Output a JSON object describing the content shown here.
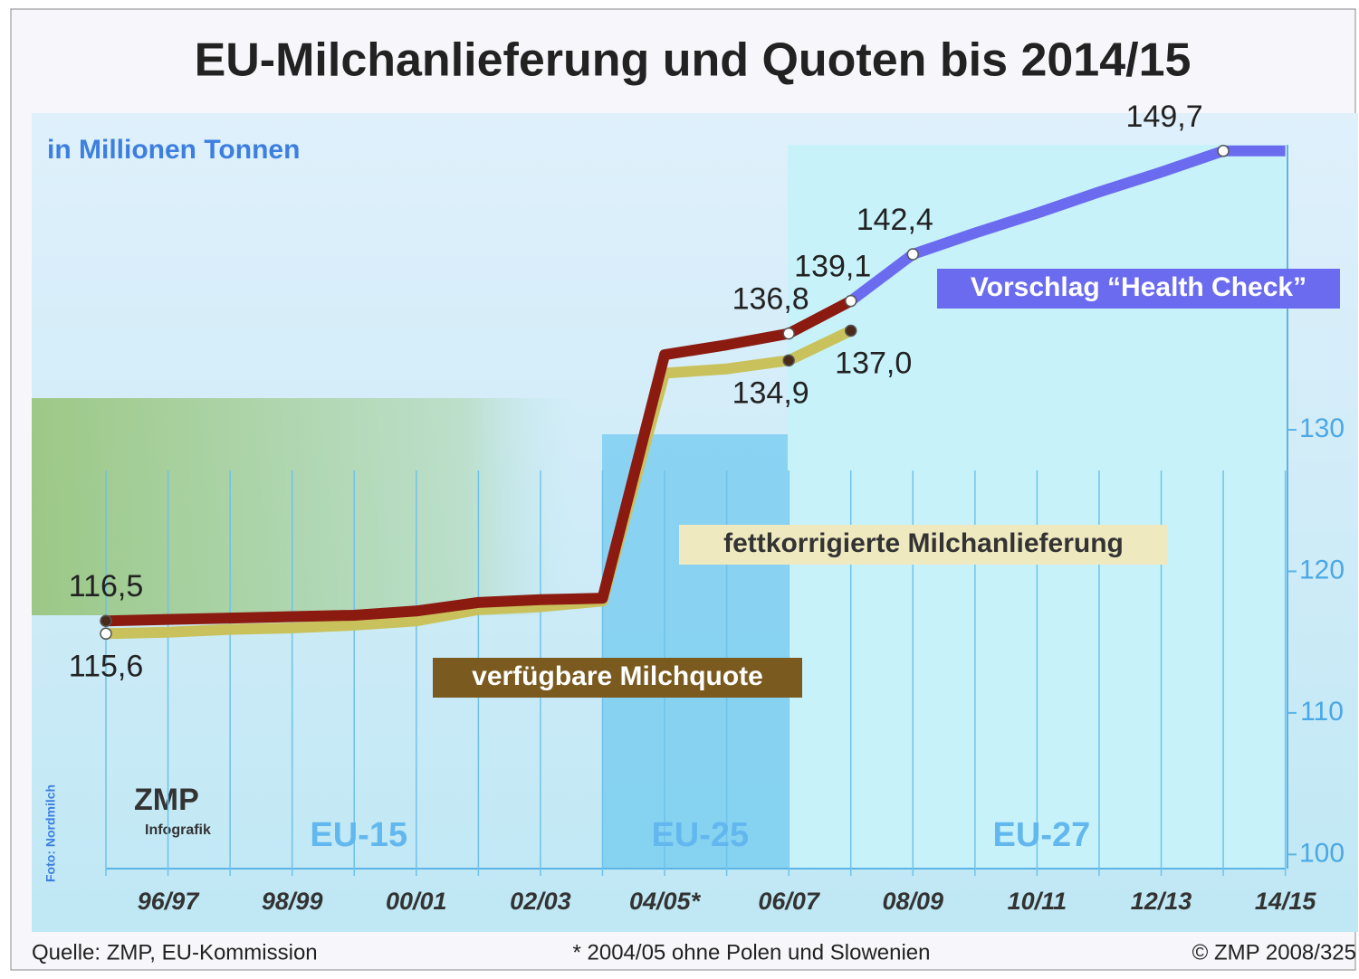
{
  "chart_data": {
    "type": "line",
    "title": "EU-Milchanlieferung und Quoten bis 2014/15",
    "subtitle": "in Millionen Tonnen",
    "categories": [
      null,
      "96/97",
      null,
      "98/99",
      null,
      "00/01",
      null,
      "02/03",
      null,
      "04/05*",
      null,
      "06/07",
      null,
      "08/09",
      null,
      "10/11",
      null,
      "12/13",
      null,
      "14/15"
    ],
    "series": [
      {
        "name": "verfügbare Milchquote",
        "color": "#8b1a10",
        "values": [
          116.5,
          116.6,
          116.7,
          116.8,
          116.9,
          117.2,
          117.8,
          118.0,
          118.1,
          135.3,
          136.0,
          136.8,
          139.1,
          null,
          null,
          null,
          null,
          null,
          null,
          null
        ],
        "value_labels": [
          "116,5",
          null,
          null,
          null,
          null,
          null,
          null,
          null,
          null,
          null,
          null,
          "136,8",
          "139,1",
          null,
          null,
          null,
          null,
          null,
          null,
          null
        ]
      },
      {
        "name": "fettkorrigierte Milchanlieferung",
        "color": "#c9c25c",
        "values": [
          115.6,
          115.7,
          115.9,
          116.0,
          116.2,
          116.5,
          117.3,
          117.5,
          117.9,
          134.0,
          134.3,
          134.9,
          137.0,
          null,
          null,
          null,
          null,
          null,
          null,
          null
        ],
        "value_labels": [
          "115,6",
          null,
          null,
          null,
          null,
          null,
          null,
          null,
          null,
          null,
          null,
          "134,9",
          "137,0",
          null,
          null,
          null,
          null,
          null,
          null,
          null
        ]
      },
      {
        "name": "Vorschlag “Health Check”",
        "color": "#6b6bf0",
        "values": [
          null,
          null,
          null,
          null,
          null,
          null,
          null,
          null,
          null,
          null,
          null,
          null,
          139.1,
          142.4,
          143.9,
          145.3,
          146.8,
          148.2,
          149.7,
          149.7
        ],
        "value_labels": [
          null,
          null,
          null,
          null,
          null,
          null,
          null,
          null,
          null,
          null,
          null,
          null,
          null,
          "142,4",
          null,
          null,
          null,
          null,
          "149,7",
          null
        ]
      }
    ],
    "ylim": [
      99,
      152.5
    ],
    "yticks": [
      100,
      110,
      120,
      130
    ],
    "eras": [
      "EU-15",
      "EU-25",
      "EU-27"
    ],
    "logo": [
      "ZMP",
      "Infografik"
    ],
    "photo_credit": "Foto: Nordmilch",
    "source": "Quelle: ZMP, EU-Kommission",
    "footnote": "* 2004/05 ohne Polen und Slowenien",
    "copyright": "© ZMP 2008/325"
  }
}
